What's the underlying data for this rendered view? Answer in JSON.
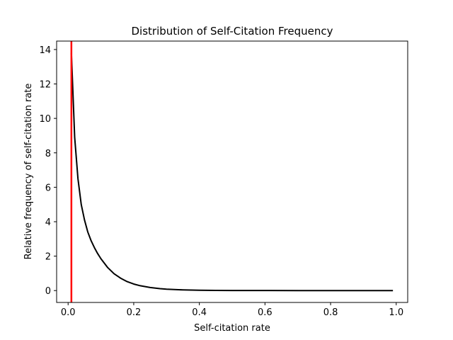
{
  "chart_data": {
    "type": "line",
    "title": "Distribution of Self-Citation Frequency",
    "xlabel": "Self-citation rate",
    "ylabel": "Relative frequency of self-citation rate",
    "xlim": [
      -0.035,
      1.035
    ],
    "ylim": [
      -0.69,
      14.49
    ],
    "xticks": [
      0.0,
      0.2,
      0.4,
      0.6,
      0.8,
      1.0
    ],
    "xtick_labels": [
      "0.0",
      "0.2",
      "0.4",
      "0.6",
      "0.8",
      "1.0"
    ],
    "yticks": [
      0,
      2,
      4,
      6,
      8,
      10,
      12,
      14
    ],
    "ytick_labels": [
      "0",
      "2",
      "4",
      "6",
      "8",
      "10",
      "12",
      "14"
    ],
    "grid": false,
    "series": [
      {
        "color": "#000000",
        "x": [
          0.01,
          0.02,
          0.03,
          0.04,
          0.05,
          0.06,
          0.07,
          0.08,
          0.09,
          0.1,
          0.12,
          0.14,
          0.16,
          0.18,
          0.2,
          0.22,
          0.25,
          0.28,
          0.3,
          0.35,
          0.4,
          0.45,
          0.5,
          0.55,
          0.6,
          0.7,
          0.8,
          0.9,
          0.99
        ],
        "y": [
          13.8,
          8.9,
          6.5,
          5.0,
          4.1,
          3.4,
          2.9,
          2.5,
          2.15,
          1.85,
          1.35,
          0.98,
          0.72,
          0.52,
          0.38,
          0.28,
          0.18,
          0.11,
          0.08,
          0.04,
          0.02,
          0.01,
          0.005,
          0.003,
          0.002,
          0.001,
          0.0,
          0.0,
          0.0
        ]
      }
    ],
    "annotations": [
      {
        "type": "vertical-line",
        "x": 0.01,
        "color": "#ff0000"
      }
    ]
  }
}
